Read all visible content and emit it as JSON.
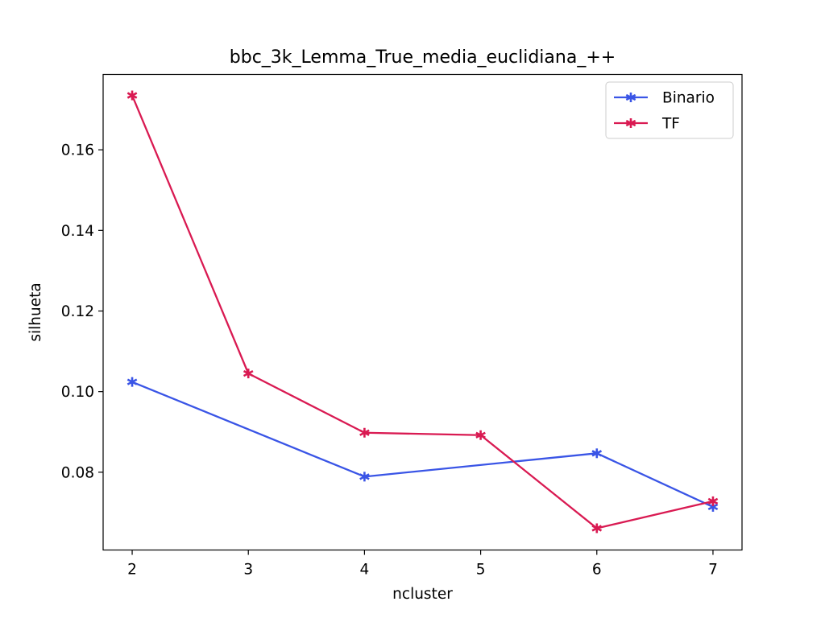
{
  "chart_data": {
    "type": "line",
    "title": "bbc_3k_Lemma_True_media_euclidiana_++",
    "xlabel": "ncluster",
    "ylabel": "silhueta",
    "x": [
      2,
      3,
      4,
      5,
      6,
      7
    ],
    "xlim": [
      1.75,
      7.25
    ],
    "ylim": [
      0.0607,
      0.1787
    ],
    "xticks": [
      "2",
      "3",
      "4",
      "5",
      "6",
      "7"
    ],
    "yticks": [
      "0.08",
      "0.10",
      "0.12",
      "0.14",
      "0.16"
    ],
    "ytick_values": [
      0.08,
      0.1,
      0.12,
      0.14,
      0.16
    ],
    "legend_position": "top-right",
    "grid": false,
    "series": [
      {
        "name": "Binario",
        "color": "#3a55e6",
        "marker": "star",
        "values": [
          0.1024,
          null,
          0.0789,
          null,
          0.0847,
          0.0714
        ]
      },
      {
        "name": "TF",
        "color": "#d91a52",
        "marker": "star",
        "values": [
          0.1735,
          0.1045,
          0.0898,
          0.0892,
          0.0661,
          0.0728
        ]
      }
    ]
  }
}
